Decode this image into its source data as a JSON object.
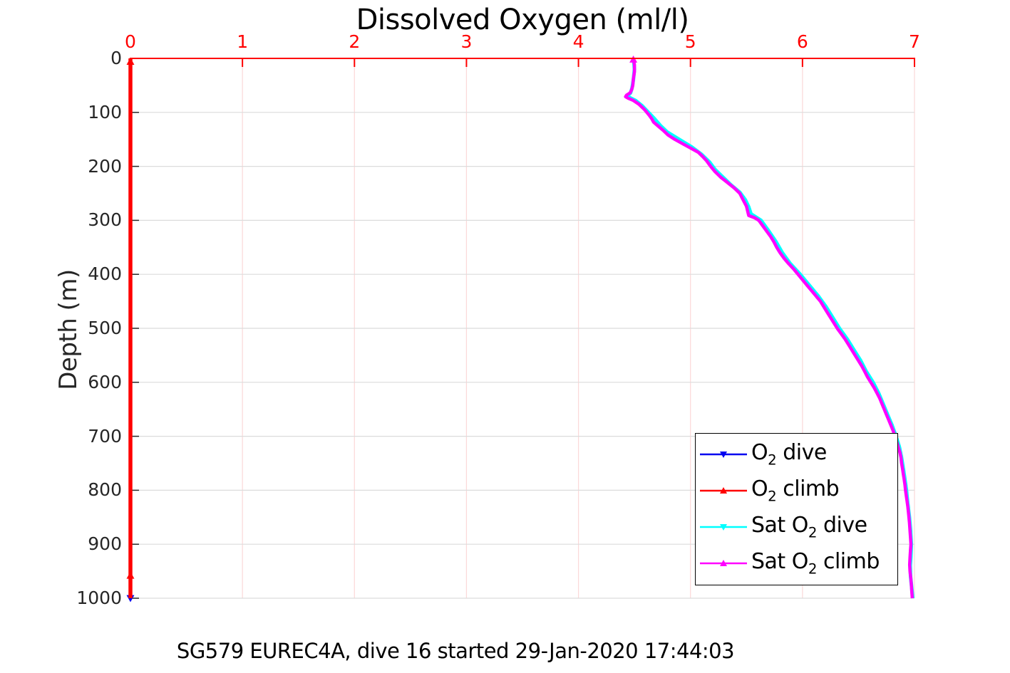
{
  "title": "Dissolved Oxygen (ml/l)",
  "caption": "SG579 EUREC4A, dive 16 started 29-Jan-2020 17:44:03",
  "x_axis": {
    "ticks": [
      "0",
      "1",
      "2",
      "3",
      "4",
      "5",
      "6",
      "7"
    ],
    "color": "#ff0000",
    "axis_line_color": "#ff0000",
    "position": "top"
  },
  "y_axis": {
    "label": "Depth (m)",
    "ticks": [
      "0",
      "100",
      "200",
      "300",
      "400",
      "500",
      "600",
      "700",
      "800",
      "900",
      "1000"
    ],
    "color": "#262626",
    "direction": "reversed"
  },
  "grid": {
    "horizontal_color": "#dcdcdc",
    "vertical_color": "#fbd8d8"
  },
  "legend": {
    "position": "inside-bottom-right",
    "border_color": "#000000",
    "background": "#ffffff"
  },
  "chart_data": {
    "type": "line",
    "title": "Dissolved Oxygen (ml/l)",
    "xlabel": "Dissolved Oxygen (ml/l)",
    "ylabel": "Depth (m)",
    "xlim": [
      0,
      7
    ],
    "ylim": [
      0,
      1000
    ],
    "y_inverted": true,
    "grid": true,
    "point_format": [
      "depth_m",
      "oxygen_mll"
    ],
    "series": [
      {
        "name": "O2 dive",
        "label_pre": "O",
        "label_sub": "2",
        "label_post": " dive",
        "color": "#0000f0",
        "marker": "triangle-down",
        "line_width": 3,
        "points": [
          [
            0,
            0
          ],
          [
            1000,
            0
          ]
        ],
        "tip_markers": [
          [
            1000,
            0
          ]
        ]
      },
      {
        "name": "O2 climb",
        "label_pre": "O",
        "label_sub": "2",
        "label_post": " climb",
        "color": "#ff0000",
        "marker": "triangle-up",
        "line_width": 5.5,
        "points": [
          [
            0,
            0
          ],
          [
            1000,
            0
          ]
        ],
        "tip_markers": [
          [
            6,
            0
          ],
          [
            958,
            0
          ]
        ]
      },
      {
        "name": "Sat O2 dive",
        "label_pre": "Sat O",
        "label_sub": "2",
        "label_post": " dive",
        "color": "#00ffff",
        "marker": "triangle-down",
        "line_width": 5,
        "points": [
          [
            0,
            4.492
          ],
          [
            20,
            4.5
          ],
          [
            40,
            4.49
          ],
          [
            55,
            4.478
          ],
          [
            64,
            4.465
          ],
          [
            69,
            4.435
          ],
          [
            73,
            4.46
          ],
          [
            78,
            4.51
          ],
          [
            88,
            4.57
          ],
          [
            100,
            4.625
          ],
          [
            112,
            4.68
          ],
          [
            124,
            4.73
          ],
          [
            136,
            4.79
          ],
          [
            150,
            4.9
          ],
          [
            164,
            5.01
          ],
          [
            178,
            5.1
          ],
          [
            192,
            5.17
          ],
          [
            206,
            5.22
          ],
          [
            220,
            5.29
          ],
          [
            234,
            5.36
          ],
          [
            248,
            5.44
          ],
          [
            262,
            5.49
          ],
          [
            275,
            5.52
          ],
          [
            288,
            5.54
          ],
          [
            300,
            5.63
          ],
          [
            320,
            5.7
          ],
          [
            340,
            5.765
          ],
          [
            360,
            5.82
          ],
          [
            380,
            5.89
          ],
          [
            400,
            5.98
          ],
          [
            420,
            6.06
          ],
          [
            440,
            6.14
          ],
          [
            460,
            6.21
          ],
          [
            480,
            6.27
          ],
          [
            500,
            6.33
          ],
          [
            520,
            6.4
          ],
          [
            540,
            6.46
          ],
          [
            560,
            6.52
          ],
          [
            580,
            6.57
          ],
          [
            600,
            6.63
          ],
          [
            620,
            6.68
          ],
          [
            640,
            6.72
          ],
          [
            660,
            6.76
          ],
          [
            680,
            6.8
          ],
          [
            700,
            6.835
          ],
          [
            720,
            6.865
          ],
          [
            740,
            6.885
          ],
          [
            760,
            6.9
          ],
          [
            780,
            6.915
          ],
          [
            800,
            6.928
          ],
          [
            825,
            6.94
          ],
          [
            850,
            6.955
          ],
          [
            875,
            6.965
          ],
          [
            900,
            6.972
          ],
          [
            920,
            6.968
          ],
          [
            940,
            6.962
          ],
          [
            960,
            6.965
          ],
          [
            980,
            6.975
          ],
          [
            1000,
            6.985
          ]
        ],
        "tip_markers": []
      },
      {
        "name": "Sat O2 climb",
        "label_pre": "Sat O",
        "label_sub": "2",
        "label_post": " climb",
        "color": "#ff00ff",
        "marker": "triangle-up",
        "line_width": 4.5,
        "points": [
          [
            0,
            4.49
          ],
          [
            12,
            4.5
          ],
          [
            25,
            4.5
          ],
          [
            38,
            4.49
          ],
          [
            50,
            4.485
          ],
          [
            58,
            4.475
          ],
          [
            64,
            4.46
          ],
          [
            68,
            4.43
          ],
          [
            71,
            4.42
          ],
          [
            74,
            4.445
          ],
          [
            78,
            4.49
          ],
          [
            85,
            4.54
          ],
          [
            95,
            4.59
          ],
          [
            105,
            4.63
          ],
          [
            112,
            4.655
          ],
          [
            118,
            4.67
          ],
          [
            126,
            4.715
          ],
          [
            134,
            4.76
          ],
          [
            142,
            4.8
          ],
          [
            150,
            4.86
          ],
          [
            158,
            4.93
          ],
          [
            166,
            5.0
          ],
          [
            174,
            5.07
          ],
          [
            182,
            5.11
          ],
          [
            190,
            5.145
          ],
          [
            200,
            5.18
          ],
          [
            210,
            5.22
          ],
          [
            220,
            5.27
          ],
          [
            230,
            5.33
          ],
          [
            240,
            5.39
          ],
          [
            250,
            5.44
          ],
          [
            258,
            5.46
          ],
          [
            266,
            5.48
          ],
          [
            274,
            5.5
          ],
          [
            283,
            5.51
          ],
          [
            291,
            5.52
          ],
          [
            295,
            5.57
          ],
          [
            300,
            5.61
          ],
          [
            310,
            5.645
          ],
          [
            320,
            5.68
          ],
          [
            330,
            5.715
          ],
          [
            340,
            5.745
          ],
          [
            350,
            5.77
          ],
          [
            360,
            5.8
          ],
          [
            370,
            5.835
          ],
          [
            380,
            5.875
          ],
          [
            390,
            5.92
          ],
          [
            400,
            5.96
          ],
          [
            410,
            6.0
          ],
          [
            420,
            6.04
          ],
          [
            430,
            6.08
          ],
          [
            440,
            6.12
          ],
          [
            450,
            6.16
          ],
          [
            460,
            6.19
          ],
          [
            470,
            6.22
          ],
          [
            480,
            6.25
          ],
          [
            490,
            6.28
          ],
          [
            500,
            6.31
          ],
          [
            510,
            6.345
          ],
          [
            520,
            6.38
          ],
          [
            530,
            6.41
          ],
          [
            540,
            6.44
          ],
          [
            550,
            6.47
          ],
          [
            560,
            6.5
          ],
          [
            570,
            6.53
          ],
          [
            580,
            6.555
          ],
          [
            590,
            6.58
          ],
          [
            600,
            6.61
          ],
          [
            610,
            6.64
          ],
          [
            620,
            6.665
          ],
          [
            630,
            6.69
          ],
          [
            640,
            6.71
          ],
          [
            650,
            6.73
          ],
          [
            660,
            6.75
          ],
          [
            670,
            6.77
          ],
          [
            680,
            6.79
          ],
          [
            690,
            6.81
          ],
          [
            700,
            6.825
          ],
          [
            710,
            6.84
          ],
          [
            720,
            6.855
          ],
          [
            730,
            6.87
          ],
          [
            740,
            6.88
          ],
          [
            750,
            6.885
          ],
          [
            760,
            6.893
          ],
          [
            770,
            6.9
          ],
          [
            780,
            6.908
          ],
          [
            790,
            6.915
          ],
          [
            800,
            6.92
          ],
          [
            815,
            6.93
          ],
          [
            830,
            6.94
          ],
          [
            845,
            6.948
          ],
          [
            860,
            6.955
          ],
          [
            875,
            6.96
          ],
          [
            890,
            6.965
          ],
          [
            900,
            6.968
          ],
          [
            912,
            6.964
          ],
          [
            925,
            6.96
          ],
          [
            938,
            6.957
          ],
          [
            950,
            6.96
          ],
          [
            963,
            6.967
          ],
          [
            975,
            6.972
          ],
          [
            988,
            6.976
          ],
          [
            1000,
            6.98
          ]
        ],
        "tip_markers": [
          [
            2,
            4.49
          ]
        ]
      }
    ]
  }
}
